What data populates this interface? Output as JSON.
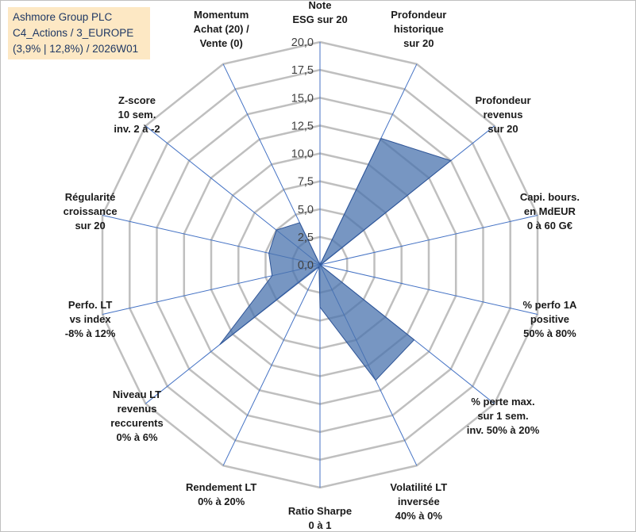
{
  "title": {
    "line1": "Ashmore Group PLC",
    "line2": "C4_Actions / 3_EUROPE",
    "line3": "(3,9% | 12,8%) / 2026W01"
  },
  "colors": {
    "grid": "#bfbfbf",
    "spoke": "#4472c4",
    "fill": "#4a73ad",
    "text": "#1a1a1a"
  },
  "chart_data": {
    "type": "radar",
    "rmax": 20,
    "ticks": [
      {
        "v": 0,
        "label": "0,0"
      },
      {
        "v": 2.5,
        "label": "2,5"
      },
      {
        "v": 5,
        "label": "5,0"
      },
      {
        "v": 7.5,
        "label": "7,5"
      },
      {
        "v": 10,
        "label": "10,0"
      },
      {
        "v": 12.5,
        "label": "12,5"
      },
      {
        "v": 15,
        "label": "15,0"
      },
      {
        "v": 17.5,
        "label": "17,5"
      },
      {
        "v": 20,
        "label": "20,0"
      }
    ],
    "axes": [
      {
        "lines": [
          "Note",
          "ESG sur 20"
        ],
        "value": 0.0
      },
      {
        "lines": [
          "Profondeur",
          "historique",
          "sur 20"
        ],
        "value": 12.6
      },
      {
        "lines": [
          "Profondeur",
          "revenus",
          "sur 20"
        ],
        "value": 15.0
      },
      {
        "lines": [
          "Capi. bours.",
          "en MdEUR",
          "0 à 60 G€"
        ],
        "value": 0.1
      },
      {
        "lines": [
          "% perfo 1A",
          "positive",
          "50% à 80%"
        ],
        "value": 0.0
      },
      {
        "lines": [
          "% perte max.",
          "sur 1 sem.",
          "inv. 50% à 20%"
        ],
        "value": 10.8
      },
      {
        "lines": [
          "Volatilité LT",
          "inversée",
          "40% à 0%"
        ],
        "value": 11.5
      },
      {
        "lines": [
          "Ratio Sharpe",
          "0 à 1"
        ],
        "value": 3.8
      },
      {
        "lines": [
          "Rendement LT",
          "0% à 20%"
        ],
        "value": 0.2
      },
      {
        "lines": [
          "Niveau LT",
          "revenus",
          "reccurents",
          "0% à 6%"
        ],
        "value": 11.5
      },
      {
        "lines": [
          "Perfo. LT",
          "vs index",
          "-8% à 12%"
        ],
        "value": 4.4
      },
      {
        "lines": [
          "Régularité",
          "croissance",
          "sur 20"
        ],
        "value": 4.7
      },
      {
        "lines": [
          "Z-score",
          "10 sem.",
          "inv. 2 à -2"
        ],
        "value": 5.0
      },
      {
        "lines": [
          "Momentum",
          "Achat (20) /",
          "Vente (0)"
        ],
        "value": 4.2
      }
    ]
  }
}
